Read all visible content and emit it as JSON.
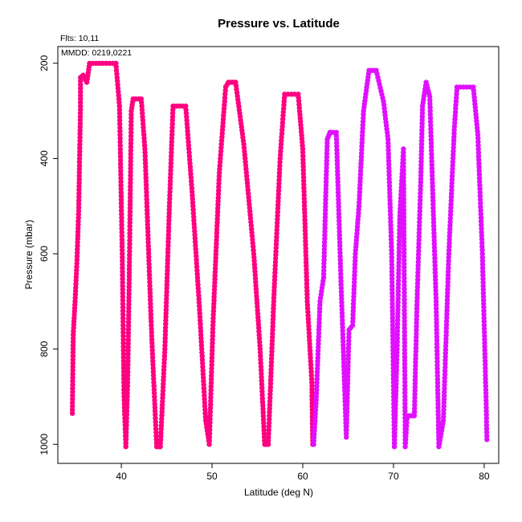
{
  "chart_data": {
    "type": "scatter",
    "title": "Pressure vs. Latitude",
    "xlabel": "Latitude (deg N)",
    "ylabel": "Pressure (mbar)",
    "annotations": [
      "Flts: 10,11",
      "MMDD: 0219,0221"
    ],
    "xlim": [
      33,
      81.6
    ],
    "ylim": [
      1040,
      165
    ],
    "y_reversed": true,
    "x_ticks": [
      "40",
      "50",
      "60",
      "70",
      "80"
    ],
    "y_ticks": [
      "200",
      "400",
      "600",
      "800",
      "1000"
    ],
    "grid": false,
    "legend": "none",
    "series": [
      {
        "color": "#ff0080",
        "points": [
          [
            34.6,
            935
          ],
          [
            34.7,
            770
          ],
          [
            34.9,
            700
          ],
          [
            35.1,
            620
          ],
          [
            35.3,
            510
          ],
          [
            35.4,
            400
          ],
          [
            35.5,
            290
          ],
          [
            35.5,
            230
          ],
          [
            35.8,
            225
          ],
          [
            36.2,
            240
          ],
          [
            36.5,
            200
          ],
          [
            39.4,
            200
          ],
          [
            39.8,
            290
          ],
          [
            40.1,
            600
          ],
          [
            40.3,
            900
          ],
          [
            40.5,
            1005
          ],
          [
            40.7,
            870
          ],
          [
            40.9,
            610
          ],
          [
            41.1,
            300
          ],
          [
            41.3,
            275
          ],
          [
            42.2,
            275
          ],
          [
            42.6,
            380
          ],
          [
            43.3,
            750
          ],
          [
            43.9,
            1005
          ],
          [
            44.3,
            1005
          ],
          [
            44.8,
            800
          ],
          [
            45.3,
            500
          ],
          [
            45.7,
            290
          ],
          [
            47.1,
            290
          ],
          [
            47.8,
            470
          ],
          [
            48.6,
            710
          ],
          [
            49.3,
            950
          ],
          [
            49.7,
            1000
          ],
          [
            50.1,
            750
          ],
          [
            50.8,
            430
          ],
          [
            51.5,
            250
          ],
          [
            51.8,
            240
          ],
          [
            52.6,
            240
          ],
          [
            53.5,
            370
          ],
          [
            54.6,
            600
          ],
          [
            55.3,
            800
          ],
          [
            55.8,
            1000
          ],
          [
            56.2,
            1000
          ],
          [
            56.8,
            700
          ],
          [
            57.5,
            400
          ],
          [
            58.0,
            265
          ],
          [
            59.5,
            265
          ],
          [
            60.0,
            380
          ],
          [
            60.5,
            700
          ],
          [
            61.0,
            870
          ],
          [
            61.1,
            1000
          ]
        ]
      },
      {
        "color": "#e010ff",
        "points": [
          [
            61.2,
            1000
          ],
          [
            61.5,
            900
          ],
          [
            61.9,
            700
          ],
          [
            62.3,
            650
          ],
          [
            62.7,
            360
          ],
          [
            63.0,
            345
          ],
          [
            63.7,
            345
          ],
          [
            64.2,
            650
          ],
          [
            64.8,
            985
          ],
          [
            65.1,
            760
          ],
          [
            65.5,
            750
          ],
          [
            65.8,
            600
          ],
          [
            66.2,
            500
          ],
          [
            66.7,
            300
          ],
          [
            67.3,
            215
          ],
          [
            68.1,
            215
          ],
          [
            68.9,
            280
          ],
          [
            69.4,
            360
          ],
          [
            69.8,
            600
          ],
          [
            70.1,
            1005
          ],
          [
            70.4,
            800
          ],
          [
            70.7,
            520
          ],
          [
            71.1,
            380
          ],
          [
            71.3,
            1005
          ],
          [
            71.5,
            940
          ],
          [
            72.3,
            940
          ],
          [
            72.6,
            700
          ],
          [
            73.0,
            450
          ],
          [
            73.2,
            290
          ],
          [
            73.6,
            240
          ],
          [
            74.0,
            270
          ],
          [
            74.7,
            700
          ],
          [
            75.0,
            1005
          ],
          [
            75.5,
            950
          ],
          [
            76.1,
            600
          ],
          [
            76.7,
            340
          ],
          [
            77.0,
            250
          ],
          [
            78.8,
            250
          ],
          [
            79.3,
            350
          ],
          [
            79.8,
            600
          ],
          [
            80.2,
            900
          ],
          [
            80.3,
            990
          ]
        ]
      }
    ]
  }
}
